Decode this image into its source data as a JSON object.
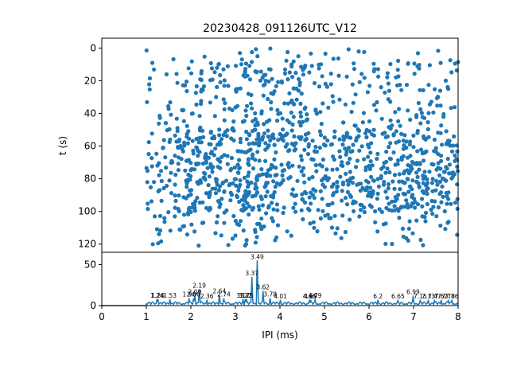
{
  "chart_data": [
    {
      "type": "scatter",
      "title": "20230428_091126UTC_V12",
      "xlabel": "",
      "ylabel": "t (s)",
      "xlim": [
        0,
        8
      ],
      "ylim": [
        125,
        -6
      ],
      "y_inverted": true,
      "yticks": [
        "0",
        "20",
        "40",
        "60",
        "80",
        "100",
        "120"
      ],
      "grid": false,
      "color": "#1f77b4",
      "points_note": "≈1300 scattered points; x (IPI) between 1.0 and 8.0 ms, t between 0 and 121 s; densest band at t≈55–95 s and at x≈3.3–3.6 ms",
      "density_profile": {
        "x": [
          1.0,
          1.5,
          2.0,
          2.2,
          2.5,
          3.0,
          3.3,
          3.5,
          3.7,
          4.0,
          4.5,
          5.0,
          5.5,
          6.0,
          6.5,
          7.0,
          7.5,
          8.0
        ],
        "relative_density": [
          0.5,
          0.8,
          1.3,
          1.5,
          1.2,
          1.2,
          1.9,
          2.1,
          1.4,
          1.0,
          1.1,
          1.0,
          0.9,
          1.0,
          0.9,
          1.2,
          1.0,
          1.0
        ]
      }
    },
    {
      "type": "line",
      "xlabel": "IPI (ms)",
      "ylabel": "",
      "xlim": [
        0,
        8
      ],
      "ylim": [
        0,
        65
      ],
      "xticks": [
        "0",
        "1",
        "2",
        "3",
        "4",
        "5",
        "6",
        "7",
        "8"
      ],
      "yticks": [
        "0",
        "50"
      ],
      "color": "#1f77b4",
      "peaks": [
        {
          "x": 1.24,
          "y": 8,
          "label": "1.24"
        },
        {
          "x": 1.26,
          "y": 8,
          "label": "1.26"
        },
        {
          "x": 1.53,
          "y": 8,
          "label": "1.53"
        },
        {
          "x": 1.96,
          "y": 9,
          "label": "1.96"
        },
        {
          "x": 2.06,
          "y": 9,
          "label": "2.06"
        },
        {
          "x": 2.09,
          "y": 12,
          "label": "2.09"
        },
        {
          "x": 2.19,
          "y": 20,
          "label": "2.19"
        },
        {
          "x": 2.36,
          "y": 7,
          "label": "2.36"
        },
        {
          "x": 2.64,
          "y": 13,
          "label": "2.64"
        },
        {
          "x": 2.74,
          "y": 9,
          "label": "2.74"
        },
        {
          "x": 3.17,
          "y": 8,
          "label": "3.17"
        },
        {
          "x": 3.22,
          "y": 8,
          "label": "3.22"
        },
        {
          "x": 3.25,
          "y": 8,
          "label": "3.25"
        },
        {
          "x": 3.37,
          "y": 35,
          "label": "3.37"
        },
        {
          "x": 3.49,
          "y": 55,
          "label": "3.49"
        },
        {
          "x": 3.62,
          "y": 18,
          "label": "3.62"
        },
        {
          "x": 3.78,
          "y": 9,
          "label": "3.78"
        },
        {
          "x": 4.01,
          "y": 7,
          "label": "4.01"
        },
        {
          "x": 4.66,
          "y": 7,
          "label": "4.66"
        },
        {
          "x": 4.69,
          "y": 7,
          "label": "4.69"
        },
        {
          "x": 4.79,
          "y": 8,
          "label": "4.79"
        },
        {
          "x": 6.2,
          "y": 7,
          "label": "6.2"
        },
        {
          "x": 6.65,
          "y": 7,
          "label": "6.65"
        },
        {
          "x": 6.99,
          "y": 12,
          "label": "6.99"
        },
        {
          "x": 7.15,
          "y": 7,
          "label": "7.15"
        },
        {
          "x": 7.33,
          "y": 7,
          "label": "7.33"
        },
        {
          "x": 7.47,
          "y": 7,
          "label": "7.47"
        },
        {
          "x": 7.62,
          "y": 7,
          "label": "7.62"
        },
        {
          "x": 7.78,
          "y": 7,
          "label": "7.78"
        },
        {
          "x": 7.86,
          "y": 7,
          "label": "7.86"
        }
      ]
    }
  ]
}
